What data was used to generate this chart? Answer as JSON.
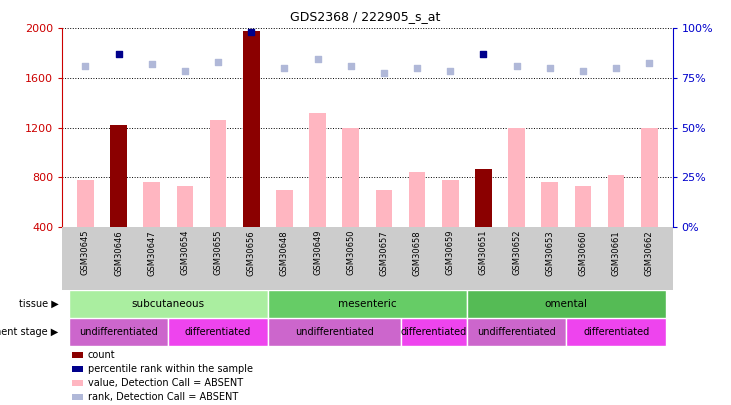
{
  "title": "GDS2368 / 222905_s_at",
  "samples": [
    "GSM30645",
    "GSM30646",
    "GSM30647",
    "GSM30654",
    "GSM30655",
    "GSM30656",
    "GSM30648",
    "GSM30649",
    "GSM30650",
    "GSM30657",
    "GSM30658",
    "GSM30659",
    "GSM30651",
    "GSM30652",
    "GSM30653",
    "GSM30660",
    "GSM30661",
    "GSM30662"
  ],
  "bar_values": [
    780,
    1220,
    760,
    730,
    1260,
    1980,
    700,
    1320,
    1200,
    700,
    840,
    780,
    870,
    1200,
    760,
    730,
    820,
    1200
  ],
  "bar_is_dark": [
    false,
    true,
    false,
    false,
    false,
    true,
    false,
    false,
    false,
    false,
    false,
    false,
    true,
    false,
    false,
    false,
    false,
    false
  ],
  "rank_dots_y": [
    1700,
    1790,
    1710,
    1660,
    1730,
    1970,
    1680,
    1750,
    1700,
    1640,
    1680,
    1660,
    1790,
    1700,
    1680,
    1660,
    1680,
    1720
  ],
  "rank_is_dark": [
    false,
    true,
    false,
    false,
    false,
    true,
    false,
    false,
    false,
    false,
    false,
    false,
    true,
    false,
    false,
    false,
    false,
    false
  ],
  "ylim_left": [
    400,
    2000
  ],
  "yticks_left": [
    400,
    800,
    1200,
    1600,
    2000
  ],
  "yticks_right": [
    0,
    25,
    50,
    75,
    100
  ],
  "ylim_right": [
    0,
    100
  ],
  "bar_color_light": "#FFB6C1",
  "bar_color_dark": "#8B0000",
  "dot_color_dark": "#00008B",
  "dot_color_light": "#B0B8D8",
  "tissue_groups": [
    {
      "label": "subcutaneous",
      "start": 0,
      "end": 5,
      "color": "#AAEEA0"
    },
    {
      "label": "mesenteric",
      "start": 6,
      "end": 11,
      "color": "#66CC66"
    },
    {
      "label": "omental",
      "start": 12,
      "end": 17,
      "color": "#55BB55"
    }
  ],
  "dev_groups": [
    {
      "label": "undifferentiated",
      "start": 0,
      "end": 2,
      "color": "#CC66CC"
    },
    {
      "label": "differentiated",
      "start": 3,
      "end": 5,
      "color": "#EE44EE"
    },
    {
      "label": "undifferentiated",
      "start": 6,
      "end": 9,
      "color": "#CC66CC"
    },
    {
      "label": "differentiated",
      "start": 10,
      "end": 11,
      "color": "#EE44EE"
    },
    {
      "label": "undifferentiated",
      "start": 12,
      "end": 14,
      "color": "#CC66CC"
    },
    {
      "label": "differentiated",
      "start": 15,
      "end": 17,
      "color": "#EE44EE"
    }
  ],
  "legend_items": [
    {
      "label": "count",
      "color": "#8B0000"
    },
    {
      "label": "percentile rank within the sample",
      "color": "#00008B"
    },
    {
      "label": "value, Detection Call = ABSENT",
      "color": "#FFB6C1"
    },
    {
      "label": "rank, Detection Call = ABSENT",
      "color": "#B0B8D8"
    }
  ],
  "tissue_row_label": "tissue",
  "dev_row_label": "development stage",
  "ylabel_left_color": "#CC0000",
  "ylabel_right_color": "#0000CC",
  "xtick_bg_color": "#CCCCCC"
}
